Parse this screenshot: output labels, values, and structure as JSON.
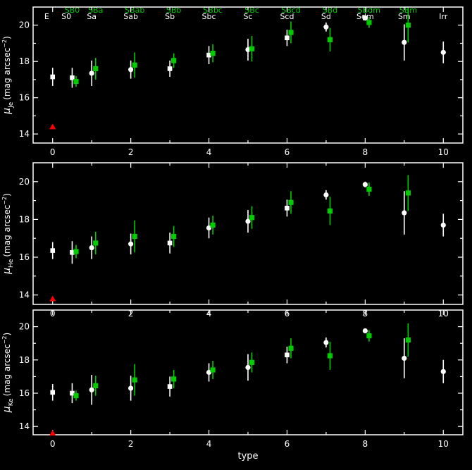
{
  "chart_data": {
    "type": "scatter",
    "xlabel": "type",
    "xlim": [
      -0.5,
      10.5
    ],
    "ylim": [
      13.5,
      21
    ],
    "x_ticks": [
      0,
      2,
      4,
      6,
      8,
      10
    ],
    "y_ticks": [
      14,
      16,
      18,
      20
    ],
    "type_labels_white": [
      {
        "x": -0.15,
        "label": "E"
      },
      {
        "x": 0.35,
        "label": "S0"
      },
      {
        "x": 1.0,
        "label": "Sa"
      },
      {
        "x": 2.0,
        "label": "Sab"
      },
      {
        "x": 3.0,
        "label": "Sb"
      },
      {
        "x": 4.0,
        "label": "Sbc"
      },
      {
        "x": 5.0,
        "label": "Sc"
      },
      {
        "x": 6.0,
        "label": "Scd"
      },
      {
        "x": 7.0,
        "label": "Sd"
      },
      {
        "x": 8.0,
        "label": "Sdm"
      },
      {
        "x": 9.0,
        "label": "Sm"
      },
      {
        "x": 10.0,
        "label": "Irr"
      }
    ],
    "type_labels_green": [
      {
        "x": 0.5,
        "label": "SB0"
      },
      {
        "x": 1.1,
        "label": "SBa"
      },
      {
        "x": 2.1,
        "label": "SBab"
      },
      {
        "x": 3.1,
        "label": "SBb"
      },
      {
        "x": 4.1,
        "label": "SBbc"
      },
      {
        "x": 5.1,
        "label": "SBc"
      },
      {
        "x": 6.1,
        "label": "SBcd"
      },
      {
        "x": 7.1,
        "label": "SBd"
      },
      {
        "x": 8.1,
        "label": "SBdm"
      },
      {
        "x": 9.1,
        "label": "SBm"
      }
    ],
    "colors": {
      "background": "#000000",
      "axes": "#ffffff",
      "white_series": "#ffffff",
      "green_series": "#00cc00",
      "red_marker": "#ff0000"
    },
    "panels": [
      {
        "ylabel_main": "μ",
        "ylabel_sub": "Je",
        "ylabel_unit": "(mag arcsec",
        "ylabel_exp": "−2",
        "ylabel_close": ")",
        "white_series": [
          {
            "x": 0,
            "y": 17.15,
            "err": 0.5,
            "marker": "square"
          },
          {
            "x": 0.5,
            "y": 17.1,
            "err": 0.55,
            "marker": "square"
          },
          {
            "x": 1,
            "y": 17.35,
            "err": 0.7,
            "marker": "circle"
          },
          {
            "x": 2,
            "y": 17.55,
            "err": 0.5,
            "marker": "circle"
          },
          {
            "x": 3,
            "y": 17.6,
            "err": 0.45,
            "marker": "square"
          },
          {
            "x": 4,
            "y": 18.35,
            "err": 0.5,
            "marker": "square"
          },
          {
            "x": 5,
            "y": 18.65,
            "err": 0.6,
            "marker": "circle"
          },
          {
            "x": 6,
            "y": 19.3,
            "err": 0.45,
            "marker": "square"
          },
          {
            "x": 7,
            "y": 19.9,
            "err": 0.25,
            "marker": "circle"
          },
          {
            "x": 8,
            "y": 20.4,
            "err": 0.15,
            "marker": "square"
          },
          {
            "x": 9,
            "y": 19.05,
            "err": 1.0,
            "marker": "circle"
          },
          {
            "x": 10,
            "y": 18.5,
            "err": 0.6,
            "marker": "circle"
          }
        ],
        "green_series": [
          {
            "x": 0.6,
            "y": 16.9,
            "err": 0.3
          },
          {
            "x": 1.1,
            "y": 17.6,
            "err": 0.6
          },
          {
            "x": 2.1,
            "y": 17.8,
            "err": 0.7
          },
          {
            "x": 3.1,
            "y": 18.05,
            "err": 0.4
          },
          {
            "x": 4.1,
            "y": 18.45,
            "err": 0.5
          },
          {
            "x": 5.1,
            "y": 18.7,
            "err": 0.7
          },
          {
            "x": 6.1,
            "y": 19.6,
            "err": 0.6
          },
          {
            "x": 7.1,
            "y": 19.2,
            "err": 0.65
          },
          {
            "x": 8.1,
            "y": 20.15,
            "err": 0.3
          },
          {
            "x": 9.1,
            "y": 20.0,
            "err": 0.95
          }
        ],
        "red_marker": {
          "x": 0,
          "y": 14.4
        }
      },
      {
        "ylabel_main": "μ",
        "ylabel_sub": "He",
        "ylabel_unit": "(mag arcsec",
        "ylabel_exp": "−2",
        "ylabel_close": ")",
        "white_series": [
          {
            "x": 0,
            "y": 16.35,
            "err": 0.45,
            "marker": "square"
          },
          {
            "x": 0.5,
            "y": 16.25,
            "err": 0.6,
            "marker": "square"
          },
          {
            "x": 1,
            "y": 16.5,
            "err": 0.6,
            "marker": "circle"
          },
          {
            "x": 2,
            "y": 16.7,
            "err": 0.55,
            "marker": "circle"
          },
          {
            "x": 3,
            "y": 16.75,
            "err": 0.55,
            "marker": "square"
          },
          {
            "x": 4,
            "y": 17.55,
            "err": 0.55,
            "marker": "circle"
          },
          {
            "x": 5,
            "y": 17.9,
            "err": 0.6,
            "marker": "circle"
          },
          {
            "x": 6,
            "y": 18.6,
            "err": 0.45,
            "marker": "square"
          },
          {
            "x": 7,
            "y": 19.3,
            "err": 0.25,
            "marker": "circle"
          },
          {
            "x": 8,
            "y": 19.85,
            "err": 0.15,
            "marker": "circle"
          },
          {
            "x": 9,
            "y": 18.35,
            "err": 1.15,
            "marker": "circle"
          },
          {
            "x": 10,
            "y": 17.7,
            "err": 0.6,
            "marker": "circle"
          }
        ],
        "green_series": [
          {
            "x": 0.6,
            "y": 16.3,
            "err": 0.35
          },
          {
            "x": 1.1,
            "y": 16.75,
            "err": 0.6
          },
          {
            "x": 2.1,
            "y": 17.1,
            "err": 0.85
          },
          {
            "x": 3.1,
            "y": 17.1,
            "err": 0.55
          },
          {
            "x": 4.1,
            "y": 17.7,
            "err": 0.5
          },
          {
            "x": 5.1,
            "y": 18.1,
            "err": 0.6
          },
          {
            "x": 6.1,
            "y": 18.9,
            "err": 0.6
          },
          {
            "x": 7.1,
            "y": 18.45,
            "err": 0.75
          },
          {
            "x": 8.1,
            "y": 19.6,
            "err": 0.35
          },
          {
            "x": 9.1,
            "y": 19.4,
            "err": 0.95
          }
        ],
        "red_marker": {
          "x": 0,
          "y": 13.8
        }
      },
      {
        "ylabel_main": "μ",
        "ylabel_sub": "Ke",
        "ylabel_unit": "(mag arcsec",
        "ylabel_exp": "−2",
        "ylabel_close": ")",
        "white_series": [
          {
            "x": 0,
            "y": 16.05,
            "err": 0.5,
            "marker": "square"
          },
          {
            "x": 0.5,
            "y": 16.0,
            "err": 0.6,
            "marker": "square"
          },
          {
            "x": 1,
            "y": 16.2,
            "err": 0.9,
            "marker": "circle"
          },
          {
            "x": 2,
            "y": 16.3,
            "err": 0.75,
            "marker": "circle"
          },
          {
            "x": 3,
            "y": 16.4,
            "err": 0.6,
            "marker": "square"
          },
          {
            "x": 4,
            "y": 17.25,
            "err": 0.55,
            "marker": "circle"
          },
          {
            "x": 5,
            "y": 17.55,
            "err": 0.8,
            "marker": "circle"
          },
          {
            "x": 6,
            "y": 18.3,
            "err": 0.5,
            "marker": "square"
          },
          {
            "x": 7,
            "y": 19.05,
            "err": 0.3,
            "marker": "circle"
          },
          {
            "x": 8,
            "y": 19.75,
            "err": 0.1,
            "marker": "circle"
          },
          {
            "x": 9,
            "y": 18.1,
            "err": 1.2,
            "marker": "circle"
          },
          {
            "x": 10,
            "y": 17.3,
            "err": 0.7,
            "marker": "circle"
          }
        ],
        "green_series": [
          {
            "x": 0.6,
            "y": 15.85,
            "err": 0.3
          },
          {
            "x": 1.1,
            "y": 16.45,
            "err": 0.6
          },
          {
            "x": 2.1,
            "y": 16.8,
            "err": 0.95
          },
          {
            "x": 3.1,
            "y": 16.85,
            "err": 0.55
          },
          {
            "x": 4.1,
            "y": 17.4,
            "err": 0.55
          },
          {
            "x": 5.1,
            "y": 17.85,
            "err": 0.6
          },
          {
            "x": 6.1,
            "y": 18.7,
            "err": 0.6
          },
          {
            "x": 7.1,
            "y": 18.25,
            "err": 0.85
          },
          {
            "x": 8.1,
            "y": 19.45,
            "err": 0.35
          },
          {
            "x": 9.1,
            "y": 19.2,
            "err": 1.0
          }
        ],
        "red_marker": {
          "x": 0,
          "y": 13.6
        }
      }
    ]
  }
}
